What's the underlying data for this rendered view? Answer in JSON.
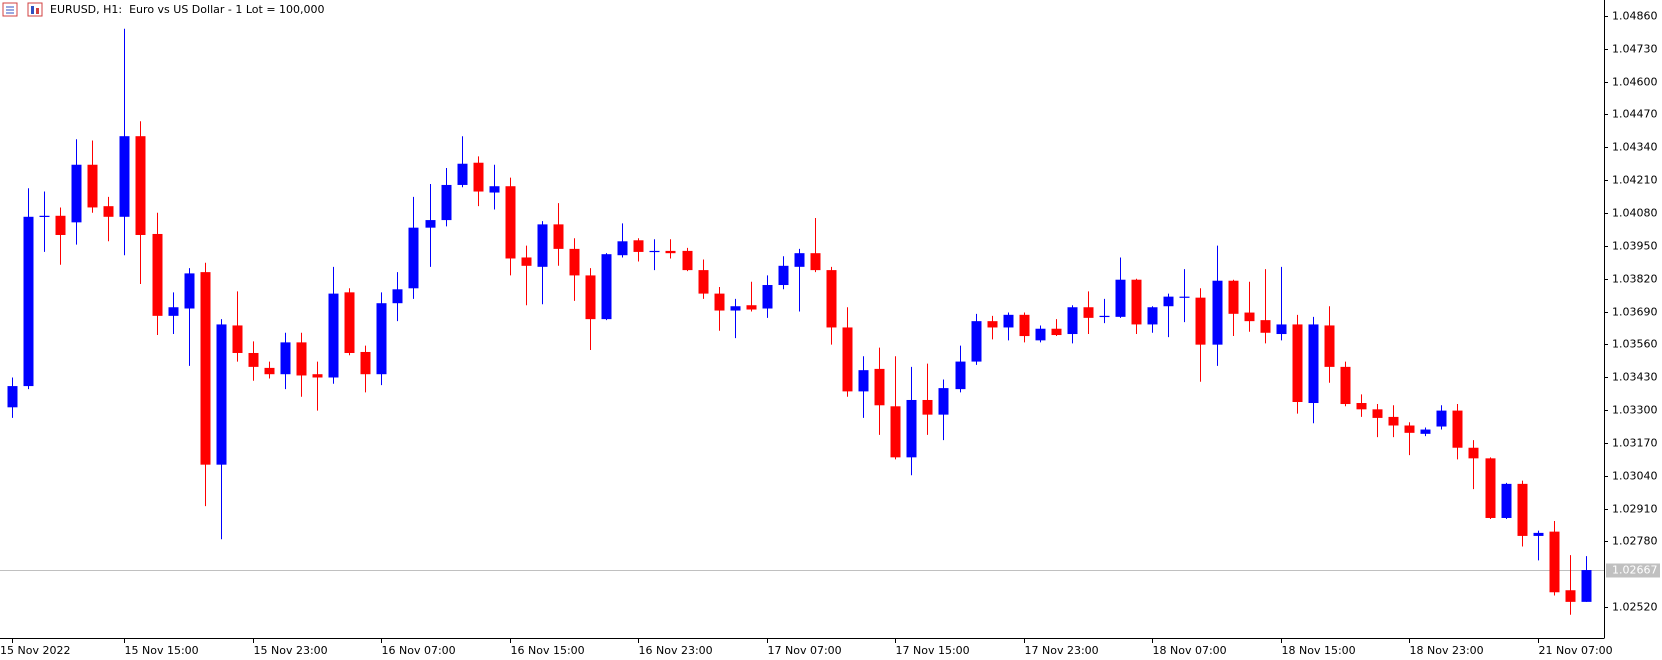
{
  "chart_data": {
    "type": "candlestick",
    "title": "EURUSD, H1:  Euro vs US Dollar - 1 Lot = 100,000",
    "up_color": "#0000ff",
    "down_color": "#ff0000",
    "grid": false,
    "categories": [
      "15 Nov 2022",
      null,
      null,
      null,
      null,
      null,
      null,
      "15 Nov 15:00",
      null,
      null,
      null,
      null,
      null,
      null,
      null,
      "15 Nov 23:00",
      null,
      null,
      null,
      null,
      null,
      null,
      null,
      "16 Nov 07:00",
      null,
      null,
      null,
      null,
      null,
      null,
      null,
      "16 Nov 15:00",
      null,
      null,
      null,
      null,
      null,
      null,
      null,
      "16 Nov 23:00",
      null,
      null,
      null,
      null,
      null,
      null,
      null,
      "17 Nov 07:00",
      null,
      null,
      null,
      null,
      null,
      null,
      null,
      "17 Nov 15:00",
      null,
      null,
      null,
      null,
      null,
      null,
      null,
      "17 Nov 23:00",
      null,
      null,
      null,
      null,
      null,
      null,
      null,
      "18 Nov 07:00",
      null,
      null,
      null,
      null,
      null,
      null,
      null,
      "18 Nov 15:00",
      null,
      null,
      null,
      null,
      null,
      null,
      null,
      "18 Nov 23:00",
      null,
      null,
      null,
      null,
      null,
      null,
      null,
      "21 Nov 07:00",
      null,
      null,
      null
    ],
    "open": [
      1.03311,
      1.03395,
      1.04065,
      1.04069,
      1.04043,
      1.04271,
      1.04107,
      1.04065,
      1.04384,
      1.03997,
      1.03673,
      1.03702,
      1.03846,
      1.03084,
      1.03635,
      1.03526,
      1.03467,
      1.03442,
      1.03568,
      1.03442,
      1.03429,
      1.03766,
      1.0353,
      1.03442,
      1.03723,
      1.03782,
      1.04022,
      1.04052,
      1.04191,
      1.04279,
      1.04161,
      1.04186,
      1.03904,
      1.03867,
      1.04035,
      1.03938,
      1.03833,
      1.0366,
      1.03913,
      1.03972,
      1.03926,
      1.0393,
      1.0393,
      1.03854,
      1.03761,
      1.03694,
      1.03715,
      1.03702,
      1.03795,
      1.03867,
      1.03921,
      1.03854,
      1.03627,
      1.03374,
      1.03463,
      1.03315,
      1.03113,
      1.0334,
      1.03282,
      1.03383,
      1.03492,
      1.03652,
      1.03627,
      1.03677,
      1.03576,
      1.03622,
      1.03601,
      1.03707,
      1.03669,
      1.03669,
      1.03816,
      1.03639,
      1.03711,
      1.03745,
      1.03745,
      1.03559,
      1.03812,
      1.03686,
      1.03656,
      1.03601,
      1.03639,
      1.03328,
      1.03635,
      1.03471,
      1.03328,
      1.03303,
      1.03273,
      1.03239,
      1.03206,
      1.03235,
      1.03298,
      1.03151,
      1.03109,
      1.02873,
      1.03008,
      1.02802,
      1.02819,
      1.02587,
      1.02541
    ],
    "high": [
      1.03429,
      1.04178,
      1.04165,
      1.04102,
      1.04372,
      1.04367,
      1.04144,
      1.04809,
      1.04443,
      1.04081,
      1.03766,
      1.03862,
      1.03883,
      1.0366,
      1.0377,
      1.03572,
      1.03492,
      1.03606,
      1.03606,
      1.03492,
      1.03867,
      1.03782,
      1.03555,
      1.03766,
      1.03846,
      1.04144,
      1.04195,
      1.04258,
      1.04384,
      1.04304,
      1.04271,
      1.0422,
      1.03951,
      1.04048,
      1.04119,
      1.0398,
      1.03862,
      1.03921,
      1.04039,
      1.0398,
      1.03976,
      1.03976,
      1.03942,
      1.03896,
      1.03787,
      1.0374,
      1.03808,
      1.03833,
      1.03909,
      1.03938,
      1.0406,
      1.03867,
      1.03707,
      1.03513,
      1.03547,
      1.03513,
      1.03471,
      1.03484,
      1.03421,
      1.03555,
      1.03681,
      1.03673,
      1.03686,
      1.03686,
      1.03635,
      1.0366,
      1.03715,
      1.0377,
      1.0374,
      1.03904,
      1.0382,
      1.03711,
      1.03761,
      1.03858,
      1.03782,
      1.03951,
      1.03816,
      1.03808,
      1.03858,
      1.03867,
      1.03677,
      1.03669,
      1.03711,
      1.03492,
      1.03362,
      1.03324,
      1.03319,
      1.03252,
      1.03231,
      1.03319,
      1.03324,
      1.03181,
      1.03113,
      1.03012,
      1.03021,
      1.02823,
      1.02861,
      1.02726,
      1.02722
    ],
    "low": [
      1.03269,
      1.03383,
      1.03926,
      1.03875,
      1.03955,
      1.04081,
      1.03968,
      1.03913,
      1.03799,
      1.03597,
      1.03601,
      1.03475,
      1.0292,
      1.02789,
      1.03492,
      1.03416,
      1.03425,
      1.03383,
      1.03353,
      1.03298,
      1.03404,
      1.03517,
      1.0337,
      1.03399,
      1.03652,
      1.0374,
      1.03867,
      1.04027,
      1.04182,
      1.04107,
      1.04094,
      1.03833,
      1.03715,
      1.03719,
      1.03871,
      1.03732,
      1.03538,
      1.03656,
      1.03904,
      1.03888,
      1.03854,
      1.039,
      1.0385,
      1.0374,
      1.03614,
      1.03585,
      1.0369,
      1.03665,
      1.03778,
      1.0369,
      1.03846,
      1.03559,
      1.03353,
      1.03269,
      1.03202,
      1.03105,
      1.03042,
      1.03202,
      1.03181,
      1.0337,
      1.03479,
      1.0358,
      1.03576,
      1.03568,
      1.03568,
      1.03593,
      1.03564,
      1.03601,
      1.03644,
      1.03665,
      1.03601,
      1.03606,
      1.03589,
      1.03648,
      1.03412,
      1.03475,
      1.03593,
      1.0361,
      1.03564,
      1.03576,
      1.03286,
      1.03248,
      1.03408,
      1.03315,
      1.03273,
      1.03193,
      1.03193,
      1.03122,
      1.03197,
      1.03223,
      1.03105,
      1.02987,
      1.02869,
      1.02869,
      1.0276,
      1.02705,
      1.02566,
      1.0249,
      1.02541
    ],
    "close": [
      1.03395,
      1.04065,
      1.04069,
      1.03993,
      1.04271,
      1.04102,
      1.04065,
      1.04384,
      1.03993,
      1.03673,
      1.03707,
      1.03841,
      1.03084,
      1.03639,
      1.03526,
      1.03471,
      1.03442,
      1.03568,
      1.03437,
      1.03429,
      1.03761,
      1.03526,
      1.03442,
      1.03723,
      1.03778,
      1.04022,
      1.04052,
      1.04191,
      1.04275,
      1.04165,
      1.04186,
      1.039,
      1.03871,
      1.04035,
      1.03938,
      1.03833,
      1.0366,
      1.03917,
      1.03968,
      1.03926,
      1.0393,
      1.03921,
      1.03854,
      1.03761,
      1.03694,
      1.03711,
      1.03698,
      1.03795,
      1.03871,
      1.03921,
      1.03854,
      1.03627,
      1.03374,
      1.03458,
      1.03319,
      1.03113,
      1.0334,
      1.03282,
      1.03387,
      1.03492,
      1.03652,
      1.03627,
      1.03677,
      1.03593,
      1.03622,
      1.03597,
      1.03707,
      1.03665,
      1.03673,
      1.03816,
      1.03639,
      1.03707,
      1.03749,
      1.03749,
      1.03559,
      1.03812,
      1.03681,
      1.03652,
      1.03606,
      1.03639,
      1.03332,
      1.03639,
      1.03471,
      1.03324,
      1.03303,
      1.03269,
      1.03239,
      1.0321,
      1.03223,
      1.03298,
      1.03151,
      1.03109,
      1.02873,
      1.03008,
      1.02802,
      1.02814,
      1.02579,
      1.02541,
      1.02667
    ],
    "ylim": [
      1.02398,
      1.04923
    ],
    "yticks": [
      {
        "value": 1.0486,
        "label": "1.04860"
      },
      {
        "value": 1.0473,
        "label": "1.04730"
      },
      {
        "value": 1.046,
        "label": "1.04600"
      },
      {
        "value": 1.0447,
        "label": "1.04470"
      },
      {
        "value": 1.0434,
        "label": "1.04340"
      },
      {
        "value": 1.0421,
        "label": "1.04210"
      },
      {
        "value": 1.0408,
        "label": "1.04080"
      },
      {
        "value": 1.0395,
        "label": "1.03950"
      },
      {
        "value": 1.0382,
        "label": "1.03820"
      },
      {
        "value": 1.0369,
        "label": "1.03690"
      },
      {
        "value": 1.0356,
        "label": "1.03560"
      },
      {
        "value": 1.0343,
        "label": "1.03430"
      },
      {
        "value": 1.033,
        "label": "1.03300"
      },
      {
        "value": 1.0317,
        "label": "1.03170"
      },
      {
        "value": 1.0304,
        "label": "1.03040"
      },
      {
        "value": 1.0291,
        "label": "1.02910"
      },
      {
        "value": 1.0278,
        "label": "1.02780"
      },
      {
        "value": 1.0252,
        "label": "1.02520"
      }
    ],
    "bid_line": {
      "value": 1.02667,
      "label": "1.02667",
      "color": "#c0c0c0"
    }
  }
}
